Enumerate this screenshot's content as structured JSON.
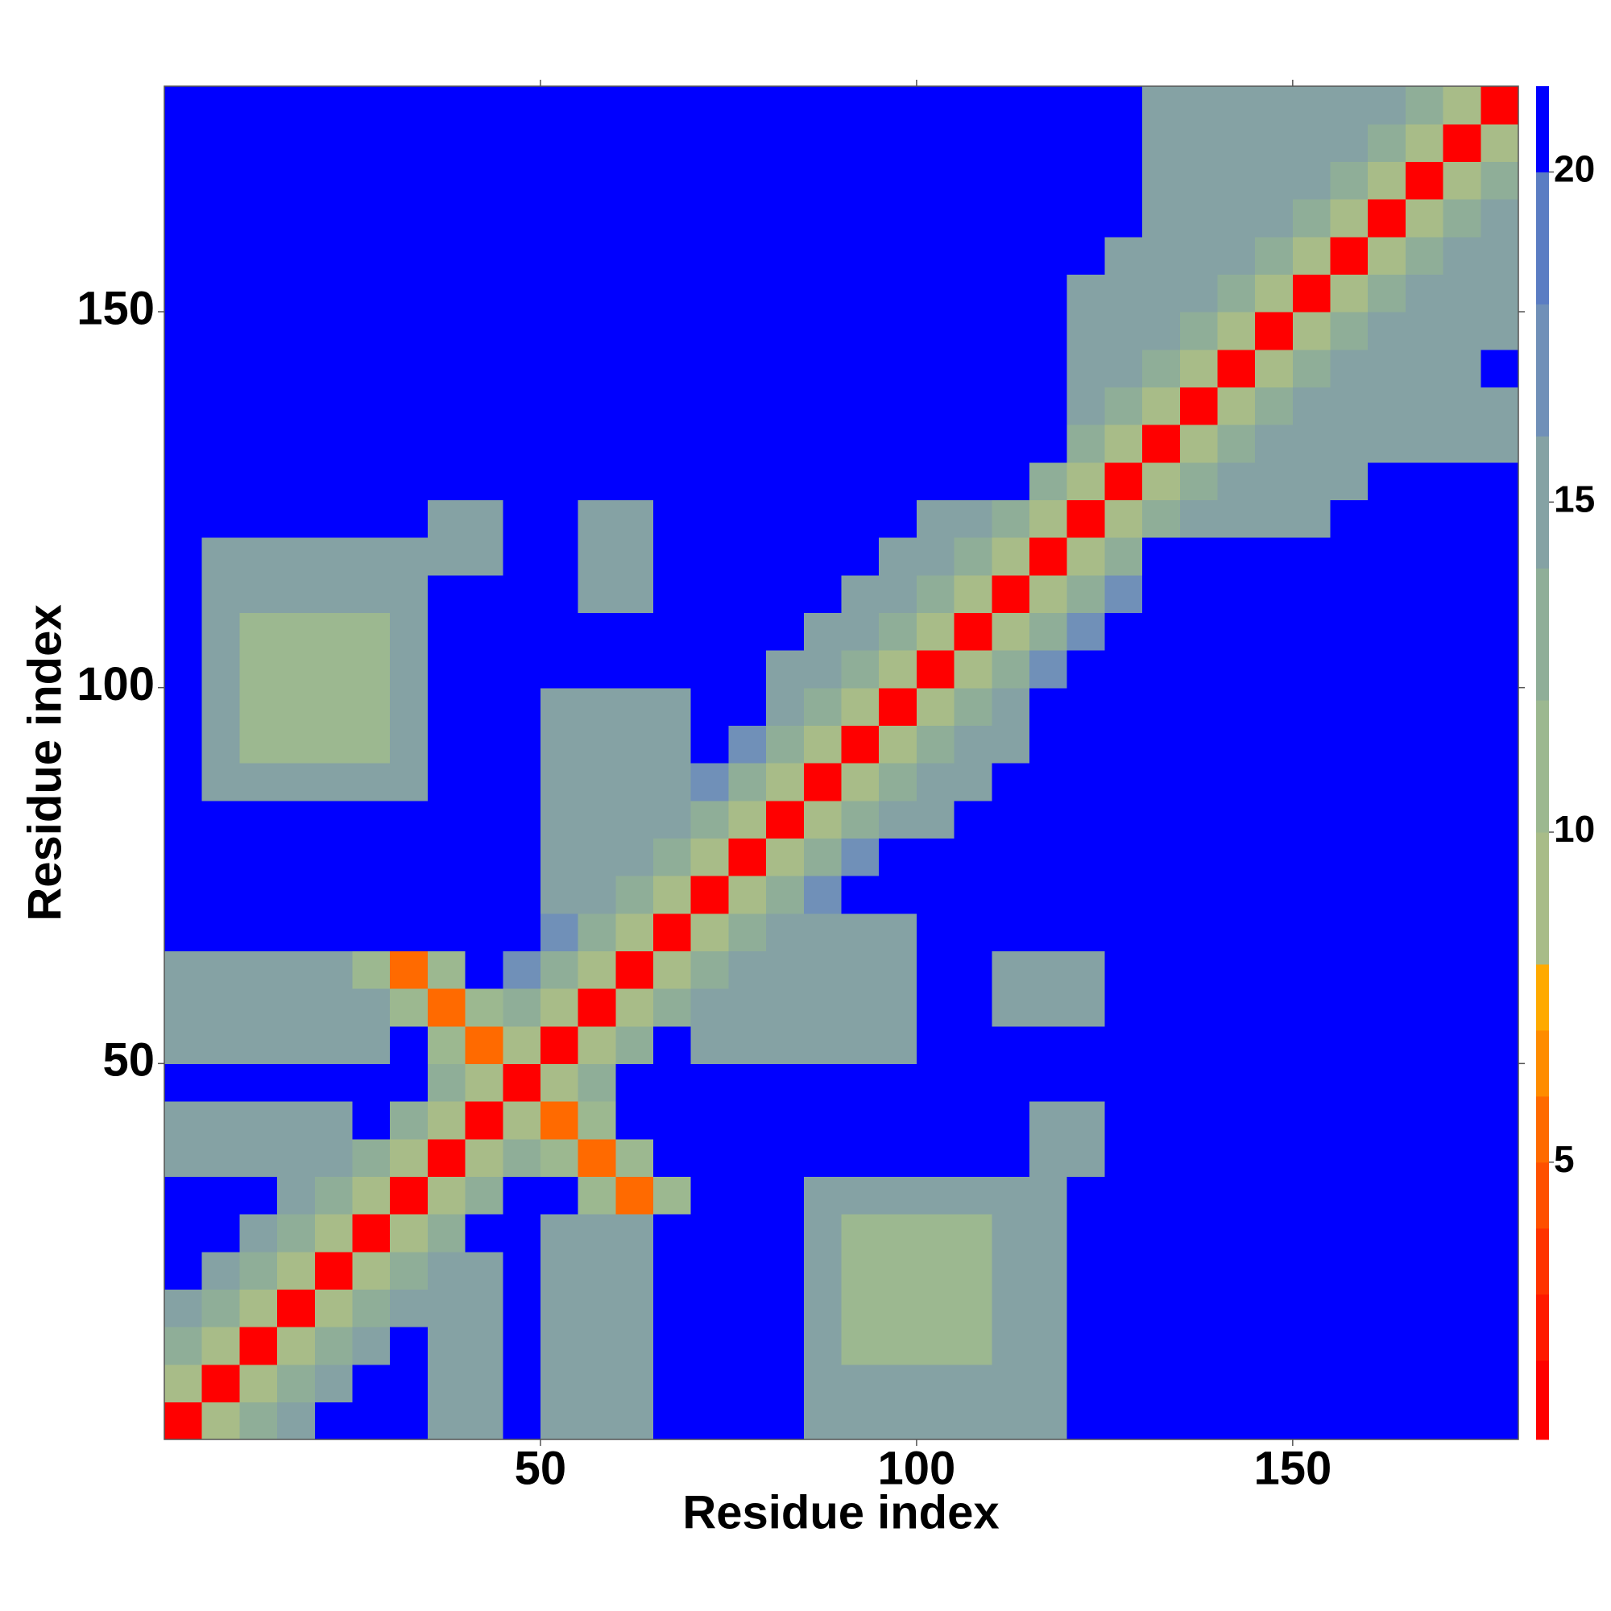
{
  "chart_data": {
    "type": "heatmap",
    "xlabel": "Residue index",
    "ylabel": "Residue index",
    "xlim": [
      0,
      180
    ],
    "ylim": [
      0,
      180
    ],
    "xticks": [
      50,
      100,
      150
    ],
    "yticks": [
      50,
      100,
      150
    ],
    "colorbar": {
      "levels": [
        0.8,
        2,
        3,
        4,
        5,
        6,
        7,
        8,
        10,
        12,
        14,
        16,
        18,
        20,
        21.3
      ],
      "colors": [
        "#ff0000",
        "#ff1a00",
        "#ff3300",
        "#ff5000",
        "#ff6a00",
        "#ff8c00",
        "#ffaa00",
        "#a8bc88",
        "#9cb890",
        "#8fae98",
        "#85a2a4",
        "#7090b8",
        "#5b7dc3",
        "#0000ff"
      ],
      "ticks": [
        5,
        10,
        15,
        20
      ]
    },
    "z": [
      [
        2,
        9,
        13,
        15,
        21,
        21,
        21,
        15,
        15,
        21,
        15,
        15,
        15,
        21,
        21,
        21,
        21,
        15,
        15,
        15,
        15,
        15,
        15,
        15,
        21,
        21,
        21,
        21,
        21,
        21,
        21,
        21,
        21,
        21,
        21,
        21
      ],
      [
        9,
        2,
        9,
        13,
        15,
        21,
        21,
        15,
        15,
        21,
        15,
        15,
        15,
        21,
        21,
        21,
        21,
        15,
        15,
        15,
        15,
        15,
        15,
        15,
        21,
        21,
        21,
        21,
        21,
        21,
        21,
        21,
        21,
        21,
        21,
        21
      ],
      [
        13,
        9,
        2,
        9,
        13,
        15,
        21,
        15,
        15,
        21,
        15,
        15,
        15,
        21,
        21,
        21,
        21,
        15,
        11,
        11,
        11,
        11,
        15,
        15,
        21,
        21,
        21,
        21,
        21,
        21,
        21,
        21,
        21,
        21,
        21,
        21
      ],
      [
        15,
        13,
        9,
        2,
        9,
        13,
        15,
        15,
        15,
        21,
        15,
        15,
        15,
        21,
        21,
        21,
        21,
        15,
        11,
        11,
        11,
        11,
        15,
        15,
        21,
        21,
        21,
        21,
        21,
        21,
        21,
        21,
        21,
        21,
        21,
        21
      ],
      [
        21,
        15,
        13,
        9,
        2,
        9,
        13,
        15,
        15,
        21,
        15,
        15,
        15,
        21,
        21,
        21,
        21,
        15,
        11,
        11,
        11,
        11,
        15,
        15,
        21,
        21,
        21,
        21,
        21,
        21,
        21,
        21,
        21,
        21,
        21,
        21
      ],
      [
        21,
        21,
        15,
        13,
        9,
        2,
        9,
        13,
        21,
        21,
        15,
        15,
        15,
        21,
        21,
        21,
        21,
        15,
        11,
        11,
        11,
        11,
        15,
        15,
        21,
        21,
        21,
        21,
        21,
        21,
        21,
        21,
        21,
        21,
        21,
        21
      ],
      [
        21,
        21,
        21,
        15,
        13,
        9,
        2,
        9,
        13,
        21,
        21,
        11,
        6,
        11,
        21,
        21,
        21,
        15,
        15,
        15,
        15,
        15,
        15,
        15,
        21,
        21,
        21,
        21,
        21,
        21,
        21,
        21,
        21,
        21,
        21,
        21
      ],
      [
        15,
        15,
        15,
        15,
        15,
        13,
        9,
        2,
        9,
        13,
        11,
        6,
        11,
        21,
        21,
        21,
        21,
        21,
        21,
        21,
        21,
        21,
        21,
        15,
        15,
        21,
        21,
        21,
        21,
        21,
        21,
        21,
        21,
        21,
        21,
        21
      ],
      [
        15,
        15,
        15,
        15,
        15,
        21,
        13,
        9,
        2,
        9,
        6,
        11,
        21,
        21,
        21,
        21,
        21,
        21,
        21,
        21,
        21,
        21,
        21,
        15,
        15,
        21,
        21,
        21,
        21,
        21,
        21,
        21,
        21,
        21,
        21,
        21
      ],
      [
        21,
        21,
        21,
        21,
        21,
        21,
        21,
        13,
        9,
        2,
        9,
        13,
        21,
        21,
        21,
        21,
        21,
        21,
        21,
        21,
        21,
        21,
        21,
        21,
        21,
        21,
        21,
        21,
        21,
        21,
        21,
        21,
        21,
        21,
        21,
        21
      ],
      [
        15,
        15,
        15,
        15,
        15,
        15,
        21,
        11,
        6,
        9,
        2,
        9,
        13,
        21,
        15,
        15,
        15,
        15,
        15,
        15,
        21,
        21,
        21,
        21,
        21,
        21,
        21,
        21,
        21,
        21,
        21,
        21,
        21,
        21,
        21,
        21
      ],
      [
        15,
        15,
        15,
        15,
        15,
        15,
        11,
        6,
        11,
        13,
        9,
        2,
        9,
        13,
        15,
        15,
        15,
        15,
        15,
        15,
        21,
        21,
        15,
        15,
        15,
        21,
        21,
        21,
        21,
        21,
        21,
        21,
        21,
        21,
        21,
        21
      ],
      [
        15,
        15,
        15,
        15,
        15,
        11,
        6,
        11,
        21,
        17,
        13,
        9,
        2,
        9,
        13,
        15,
        15,
        15,
        15,
        15,
        21,
        21,
        15,
        15,
        15,
        21,
        21,
        21,
        21,
        21,
        21,
        21,
        21,
        21,
        21,
        21
      ],
      [
        21,
        21,
        21,
        21,
        21,
        21,
        21,
        21,
        21,
        21,
        17,
        13,
        9,
        2,
        9,
        13,
        15,
        15,
        15,
        15,
        21,
        21,
        21,
        21,
        21,
        21,
        21,
        21,
        21,
        21,
        21,
        21,
        21,
        21,
        21,
        21
      ],
      [
        21,
        21,
        21,
        21,
        21,
        21,
        21,
        21,
        21,
        21,
        15,
        15,
        13,
        9,
        2,
        9,
        13,
        17,
        21,
        21,
        21,
        21,
        21,
        21,
        21,
        21,
        21,
        21,
        21,
        21,
        21,
        21,
        21,
        21,
        21,
        21
      ],
      [
        21,
        21,
        21,
        21,
        21,
        21,
        21,
        21,
        21,
        21,
        15,
        15,
        15,
        13,
        9,
        2,
        9,
        13,
        17,
        21,
        21,
        21,
        21,
        21,
        21,
        21,
        21,
        21,
        21,
        21,
        21,
        21,
        21,
        21,
        21,
        21
      ],
      [
        21,
        21,
        21,
        21,
        21,
        21,
        21,
        21,
        21,
        21,
        15,
        15,
        15,
        15,
        13,
        9,
        2,
        9,
        13,
        15,
        15,
        21,
        21,
        21,
        21,
        21,
        21,
        21,
        21,
        21,
        21,
        21,
        21,
        21,
        21,
        21
      ],
      [
        21,
        15,
        15,
        15,
        15,
        15,
        15,
        21,
        21,
        21,
        15,
        15,
        15,
        15,
        17,
        13,
        9,
        2,
        9,
        13,
        15,
        15,
        21,
        21,
        21,
        21,
        21,
        21,
        21,
        21,
        21,
        21,
        21,
        21,
        21,
        21
      ],
      [
        21,
        15,
        11,
        11,
        11,
        11,
        15,
        21,
        21,
        21,
        15,
        15,
        15,
        15,
        21,
        17,
        13,
        9,
        2,
        9,
        13,
        15,
        15,
        21,
        21,
        21,
        21,
        21,
        21,
        21,
        21,
        21,
        21,
        21,
        21,
        21
      ],
      [
        21,
        15,
        11,
        11,
        11,
        11,
        15,
        21,
        21,
        21,
        15,
        15,
        15,
        15,
        21,
        21,
        15,
        13,
        9,
        2,
        9,
        13,
        15,
        21,
        21,
        21,
        21,
        21,
        21,
        21,
        21,
        21,
        21,
        21,
        21,
        21
      ],
      [
        21,
        15,
        11,
        11,
        11,
        11,
        15,
        21,
        21,
        21,
        21,
        21,
        21,
        21,
        21,
        21,
        15,
        15,
        13,
        9,
        2,
        9,
        13,
        17,
        21,
        21,
        21,
        21,
        21,
        21,
        21,
        21,
        21,
        21,
        21,
        21
      ],
      [
        21,
        15,
        11,
        11,
        11,
        11,
        15,
        21,
        21,
        21,
        21,
        21,
        21,
        21,
        21,
        21,
        21,
        15,
        15,
        13,
        9,
        2,
        9,
        13,
        17,
        21,
        21,
        21,
        21,
        21,
        21,
        21,
        21,
        21,
        21,
        21
      ],
      [
        21,
        15,
        15,
        15,
        15,
        15,
        15,
        21,
        21,
        21,
        21,
        15,
        15,
        21,
        21,
        21,
        21,
        21,
        15,
        15,
        13,
        9,
        2,
        9,
        13,
        17,
        21,
        21,
        21,
        21,
        21,
        21,
        21,
        21,
        21,
        21
      ],
      [
        21,
        15,
        15,
        15,
        15,
        15,
        15,
        15,
        15,
        21,
        21,
        15,
        15,
        21,
        21,
        21,
        21,
        21,
        21,
        15,
        15,
        13,
        9,
        2,
        9,
        13,
        21,
        21,
        21,
        21,
        21,
        21,
        21,
        21,
        21,
        21
      ],
      [
        21,
        21,
        21,
        21,
        21,
        21,
        21,
        15,
        15,
        21,
        21,
        15,
        15,
        21,
        21,
        21,
        21,
        21,
        21,
        21,
        15,
        15,
        13,
        9,
        2,
        9,
        13,
        15,
        15,
        15,
        15,
        21,
        21,
        21,
        21,
        21
      ],
      [
        21,
        21,
        21,
        21,
        21,
        21,
        21,
        21,
        21,
        21,
        21,
        21,
        21,
        21,
        21,
        21,
        21,
        21,
        21,
        21,
        21,
        21,
        21,
        13,
        9,
        2,
        9,
        13,
        15,
        15,
        15,
        15,
        21,
        21,
        21,
        21
      ],
      [
        21,
        21,
        21,
        21,
        21,
        21,
        21,
        21,
        21,
        21,
        21,
        21,
        21,
        21,
        21,
        21,
        21,
        21,
        21,
        21,
        21,
        21,
        21,
        21,
        13,
        9,
        2,
        9,
        13,
        15,
        15,
        15,
        15,
        15,
        15,
        15
      ],
      [
        21,
        21,
        21,
        21,
        21,
        21,
        21,
        21,
        21,
        21,
        21,
        21,
        21,
        21,
        21,
        21,
        21,
        21,
        21,
        21,
        21,
        21,
        21,
        21,
        15,
        13,
        9,
        2,
        9,
        13,
        15,
        15,
        15,
        15,
        15,
        15
      ],
      [
        21,
        21,
        21,
        21,
        21,
        21,
        21,
        21,
        21,
        21,
        21,
        21,
        21,
        21,
        21,
        21,
        21,
        21,
        21,
        21,
        21,
        21,
        21,
        21,
        15,
        15,
        13,
        9,
        2,
        9,
        13,
        15,
        15,
        15,
        15,
        21
      ],
      [
        21,
        21,
        21,
        21,
        21,
        21,
        21,
        21,
        21,
        21,
        21,
        21,
        21,
        21,
        21,
        21,
        21,
        21,
        21,
        21,
        21,
        21,
        21,
        21,
        15,
        15,
        15,
        13,
        9,
        2,
        9,
        13,
        15,
        15,
        15,
        15
      ],
      [
        21,
        21,
        21,
        21,
        21,
        21,
        21,
        21,
        21,
        21,
        21,
        21,
        21,
        21,
        21,
        21,
        21,
        21,
        21,
        21,
        21,
        21,
        21,
        21,
        15,
        15,
        15,
        15,
        13,
        9,
        2,
        9,
        13,
        15,
        15,
        15
      ],
      [
        21,
        21,
        21,
        21,
        21,
        21,
        21,
        21,
        21,
        21,
        21,
        21,
        21,
        21,
        21,
        21,
        21,
        21,
        21,
        21,
        21,
        21,
        21,
        21,
        21,
        15,
        15,
        15,
        15,
        13,
        9,
        2,
        9,
        13,
        15,
        15
      ],
      [
        21,
        21,
        21,
        21,
        21,
        21,
        21,
        21,
        21,
        21,
        21,
        21,
        21,
        21,
        21,
        21,
        21,
        21,
        21,
        21,
        21,
        21,
        21,
        21,
        21,
        21,
        15,
        15,
        15,
        15,
        13,
        9,
        2,
        9,
        13,
        15
      ],
      [
        21,
        21,
        21,
        21,
        21,
        21,
        21,
        21,
        21,
        21,
        21,
        21,
        21,
        21,
        21,
        21,
        21,
        21,
        21,
        21,
        21,
        21,
        21,
        21,
        21,
        21,
        15,
        15,
        15,
        15,
        15,
        13,
        9,
        2,
        9,
        13
      ],
      [
        21,
        21,
        21,
        21,
        21,
        21,
        21,
        21,
        21,
        21,
        21,
        21,
        21,
        21,
        21,
        21,
        21,
        21,
        21,
        21,
        21,
        21,
        21,
        21,
        21,
        21,
        15,
        15,
        15,
        15,
        15,
        15,
        13,
        9,
        2,
        9
      ],
      [
        21,
        21,
        21,
        21,
        21,
        21,
        21,
        21,
        21,
        21,
        21,
        21,
        21,
        21,
        21,
        21,
        21,
        21,
        21,
        21,
        21,
        21,
        21,
        21,
        21,
        21,
        15,
        15,
        15,
        15,
        15,
        15,
        15,
        13,
        9,
        2
      ]
    ]
  }
}
